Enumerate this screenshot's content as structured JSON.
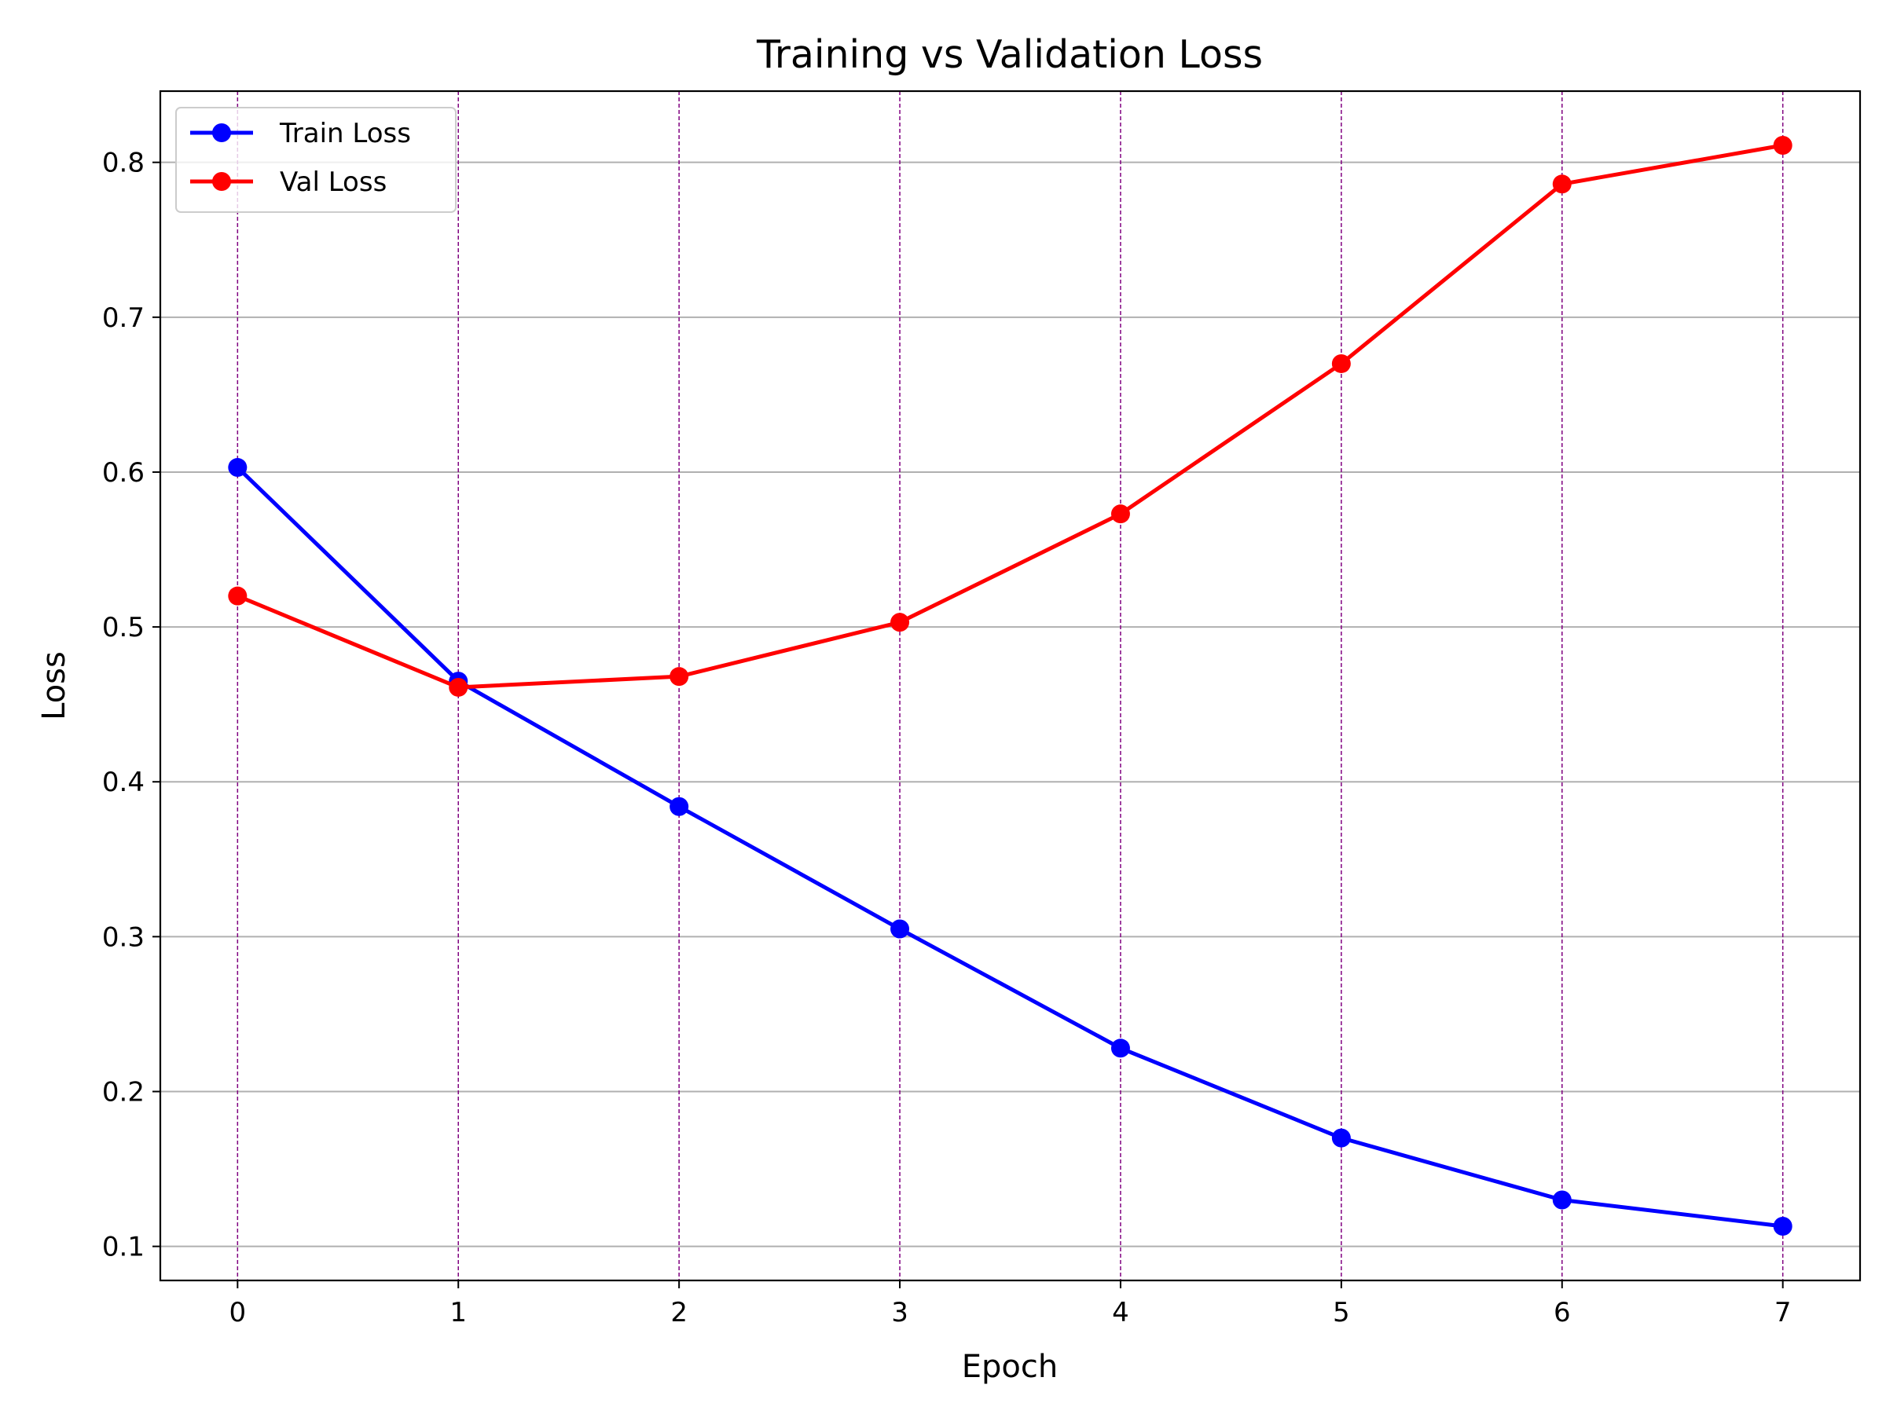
{
  "chart_data": {
    "type": "line",
    "title": "Training vs Validation Loss",
    "xlabel": "Epoch",
    "ylabel": "Loss",
    "x": [
      0,
      1,
      2,
      3,
      4,
      5,
      6,
      7
    ],
    "xticks": [
      "0",
      "1",
      "2",
      "3",
      "4",
      "5",
      "6",
      "7"
    ],
    "yticks": [
      "0.1",
      "0.2",
      "0.3",
      "0.4",
      "0.5",
      "0.6",
      "0.7",
      "0.8"
    ],
    "xlim": [
      -0.35,
      7.35
    ],
    "ylim": [
      0.078,
      0.846
    ],
    "grid": {
      "horizontal": "solid gray",
      "vertical": "dashed purple at each epoch"
    },
    "legend": {
      "position": "top-left"
    },
    "series": [
      {
        "name": "Train Loss",
        "color": "#0000ff",
        "marker": "circle",
        "values": [
          0.603,
          0.465,
          0.384,
          0.305,
          0.228,
          0.17,
          0.13,
          0.113
        ]
      },
      {
        "name": "Val Loss",
        "color": "#ff0000",
        "marker": "circle",
        "values": [
          0.52,
          0.461,
          0.468,
          0.503,
          0.573,
          0.67,
          0.786,
          0.811
        ]
      }
    ]
  }
}
